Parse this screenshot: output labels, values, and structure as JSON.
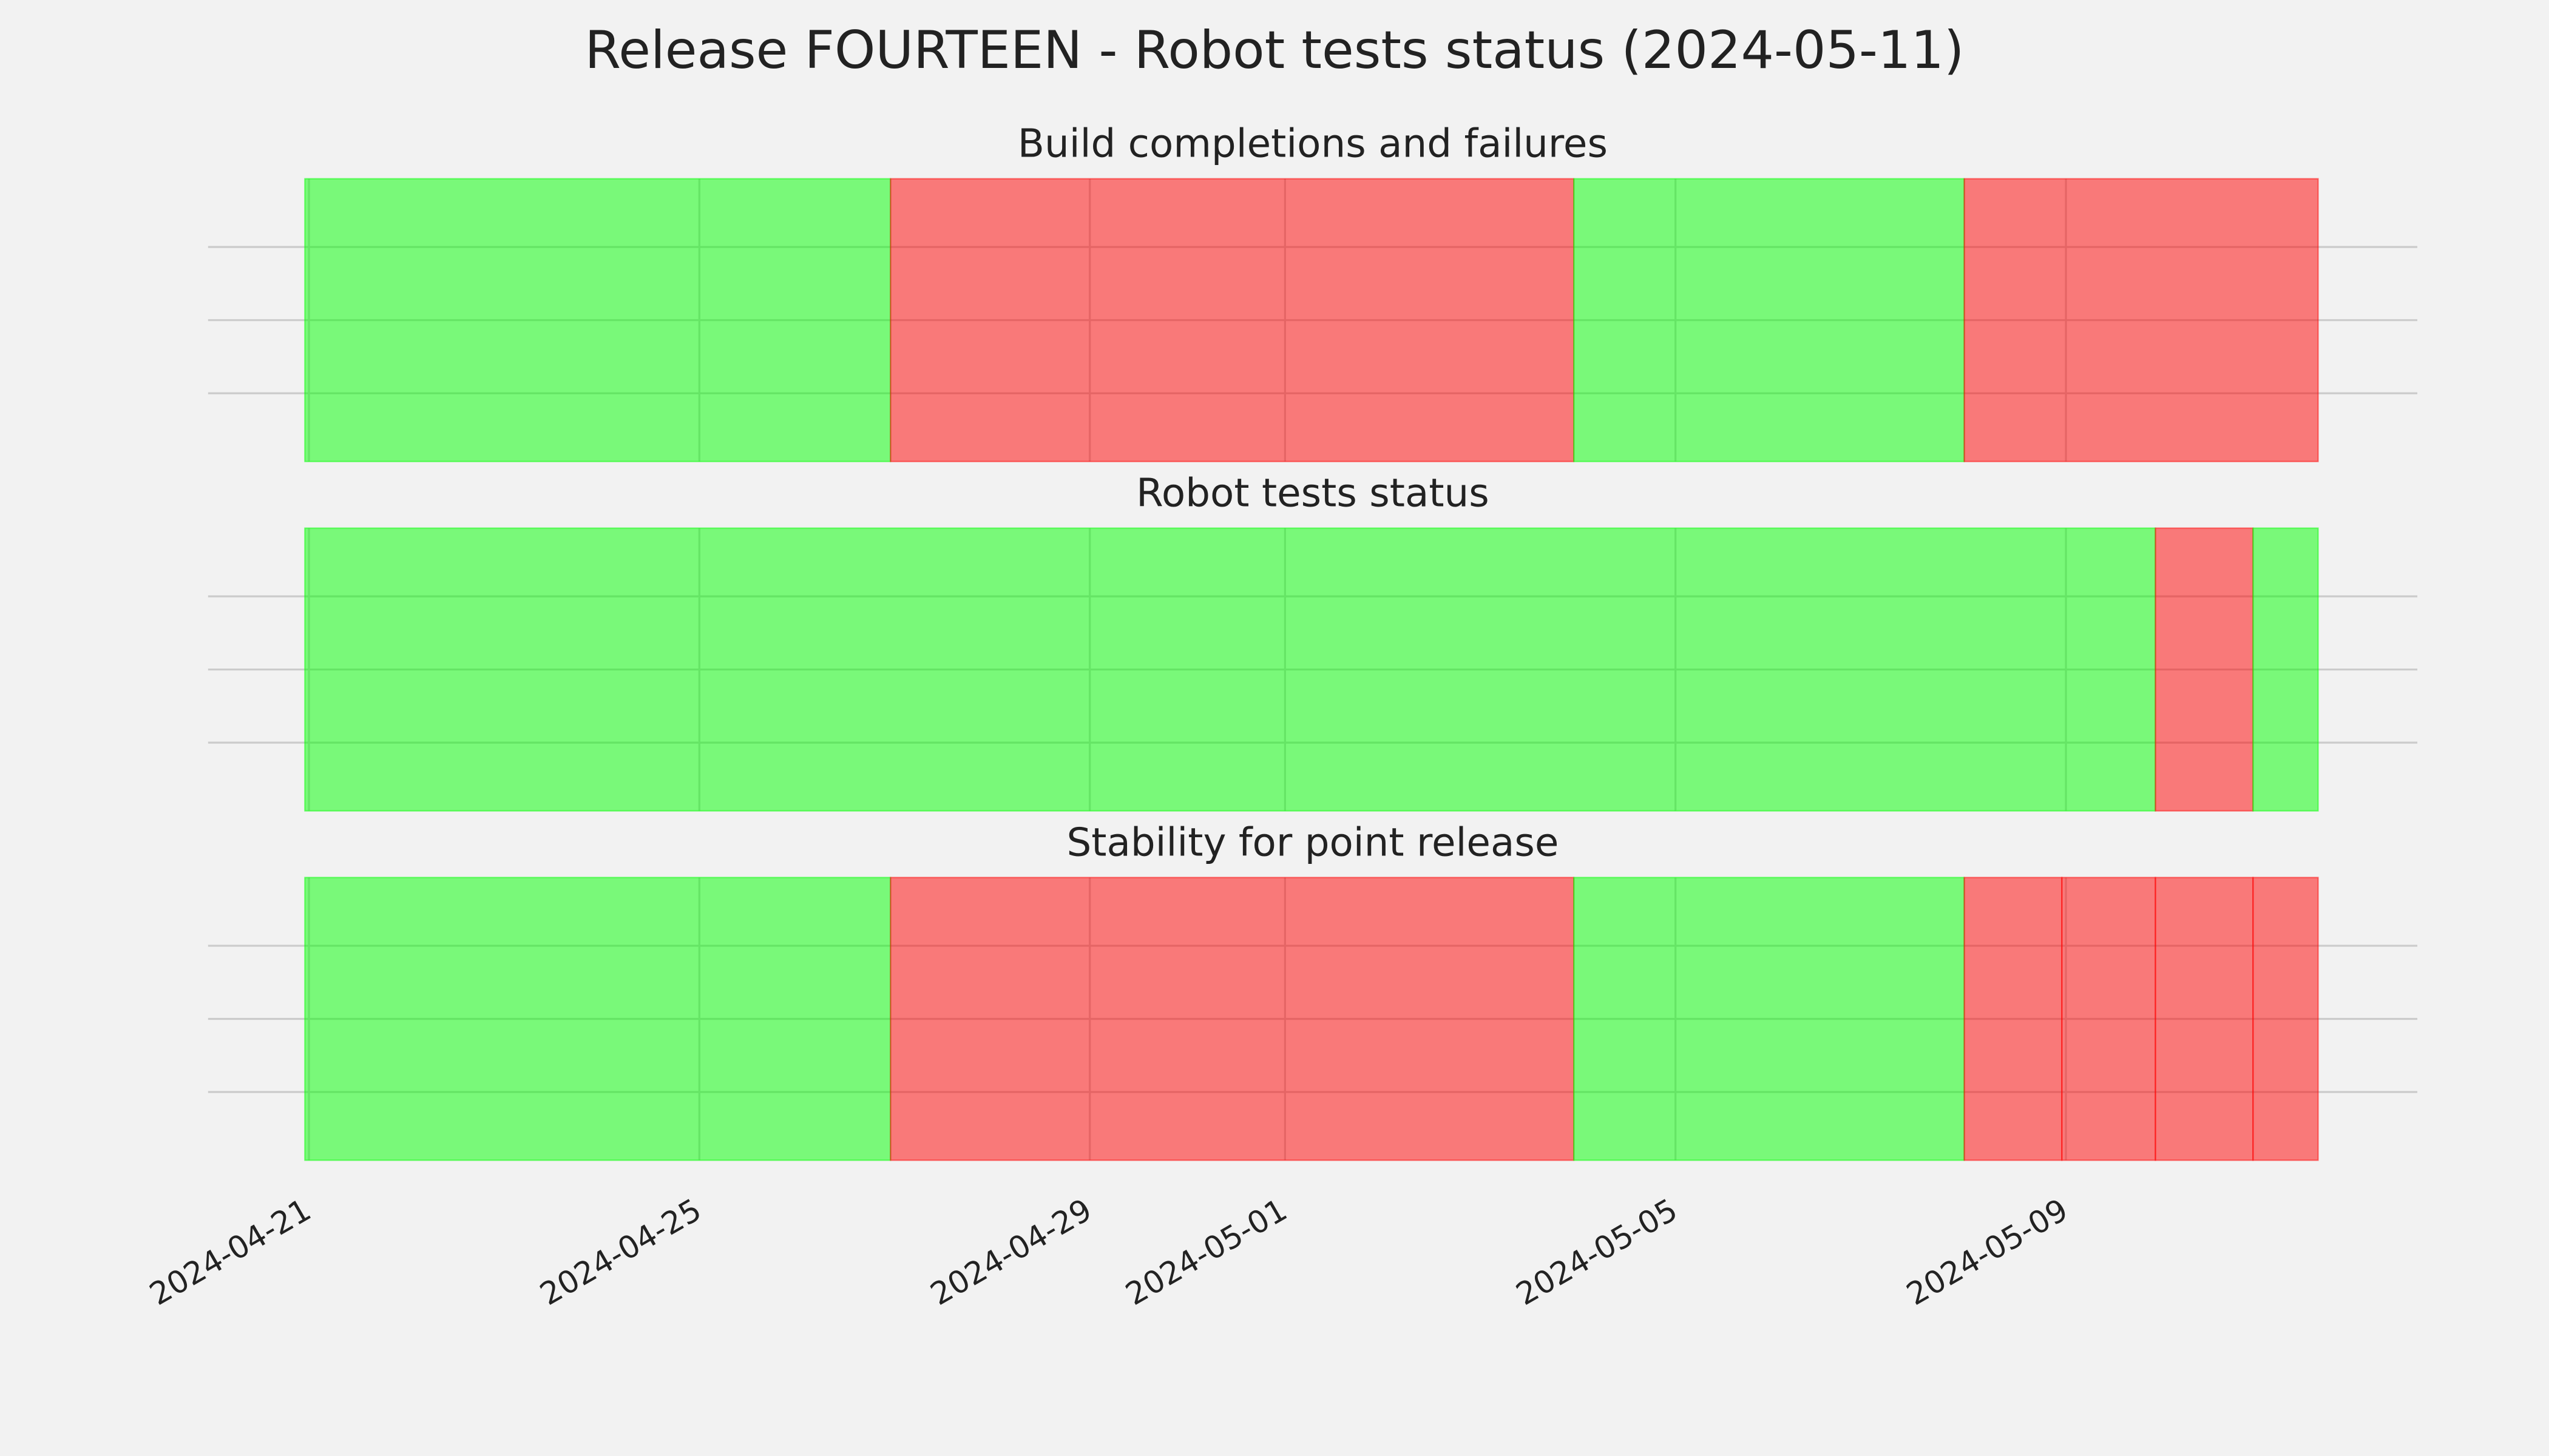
{
  "title": "Release FOURTEEN - Robot tests status (2024-05-11)",
  "chart_data": [
    {
      "type": "timeline",
      "title": "Build completions and failures",
      "xlim": [
        "2024-04-19T23:12",
        "2024-05-12T14:24"
      ],
      "xticks": [
        "2024-04-21",
        "2024-04-25",
        "2024-04-29",
        "2024-05-01",
        "2024-05-05",
        "2024-05-09"
      ],
      "grid": true,
      "segments": [
        {
          "start": "2024-04-20T23:00",
          "end": "2024-04-26T23:00",
          "color": "#00ff00"
        },
        {
          "start": "2024-04-26T23:00",
          "end": "2024-05-03T23:00",
          "color": "#ff0000"
        },
        {
          "start": "2024-05-03T23:00",
          "end": "2024-05-07T23:00",
          "color": "#00ff00"
        },
        {
          "start": "2024-05-07T23:00",
          "end": "2024-05-11T14:00",
          "color": "#ff0000"
        }
      ]
    },
    {
      "type": "timeline",
      "title": "Robot tests status",
      "xlim": [
        "2024-04-19T23:12",
        "2024-05-12T14:24"
      ],
      "xticks": [
        "2024-04-21",
        "2024-04-25",
        "2024-04-29",
        "2024-05-01",
        "2024-05-05",
        "2024-05-09"
      ],
      "grid": true,
      "segments": [
        {
          "start": "2024-04-20T23:00",
          "end": "2024-05-09T22:00",
          "color": "#00ff00"
        },
        {
          "start": "2024-05-09T22:00",
          "end": "2024-05-10T22:00",
          "color": "#ff0000"
        },
        {
          "start": "2024-05-10T22:00",
          "end": "2024-05-11T14:00",
          "color": "#00ff00"
        }
      ]
    },
    {
      "type": "timeline",
      "title": "Stability for point release",
      "xlim": [
        "2024-04-19T23:12",
        "2024-05-12T14:24"
      ],
      "xticks": [
        "2024-04-21",
        "2024-04-25",
        "2024-04-29",
        "2024-05-01",
        "2024-05-05",
        "2024-05-09"
      ],
      "grid": true,
      "segments": [
        {
          "start": "2024-04-20T23:00",
          "end": "2024-04-26T23:00",
          "color": "#00ff00"
        },
        {
          "start": "2024-04-26T23:00",
          "end": "2024-05-03T23:00",
          "color": "#ff0000"
        },
        {
          "start": "2024-05-03T23:00",
          "end": "2024-05-07T23:00",
          "color": "#00ff00"
        },
        {
          "start": "2024-05-07T23:00",
          "end": "2024-05-08T23:00",
          "color": "#ff0000"
        },
        {
          "start": "2024-05-08T23:00",
          "end": "2024-05-09T22:00",
          "color": "#ff0000"
        },
        {
          "start": "2024-05-09T22:00",
          "end": "2024-05-10T22:00",
          "color": "#ff0000"
        },
        {
          "start": "2024-05-10T22:00",
          "end": "2024-05-11T14:00",
          "color": "#ff0000"
        }
      ]
    }
  ]
}
